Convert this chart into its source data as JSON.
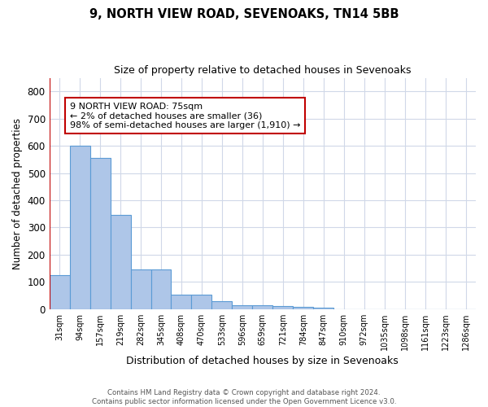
{
  "title": "9, NORTH VIEW ROAD, SEVENOAKS, TN14 5BB",
  "subtitle": "Size of property relative to detached houses in Sevenoaks",
  "xlabel": "Distribution of detached houses by size in Sevenoaks",
  "ylabel": "Number of detached properties",
  "categories": [
    "31sqm",
    "94sqm",
    "157sqm",
    "219sqm",
    "282sqm",
    "345sqm",
    "408sqm",
    "470sqm",
    "533sqm",
    "596sqm",
    "659sqm",
    "721sqm",
    "784sqm",
    "847sqm",
    "910sqm",
    "972sqm",
    "1035sqm",
    "1098sqm",
    "1161sqm",
    "1223sqm",
    "1286sqm"
  ],
  "values": [
    125,
    600,
    555,
    345,
    147,
    147,
    53,
    53,
    30,
    15,
    15,
    10,
    8,
    5,
    0,
    0,
    0,
    0,
    0,
    0,
    0
  ],
  "bar_color": "#aec6e8",
  "bar_edge_color": "#5b9bd5",
  "highlight_color": "#c00000",
  "annotation_text": "9 NORTH VIEW ROAD: 75sqm\n← 2% of detached houses are smaller (36)\n98% of semi-detached houses are larger (1,910) →",
  "annotation_box_color": "#ffffff",
  "annotation_box_edge": "#c00000",
  "ylim": [
    0,
    850
  ],
  "yticks": [
    0,
    100,
    200,
    300,
    400,
    500,
    600,
    700,
    800
  ],
  "footer": "Contains HM Land Registry data © Crown copyright and database right 2024.\nContains public sector information licensed under the Open Government Licence v3.0.",
  "bg_color": "#ffffff",
  "grid_color": "#d0d8e8"
}
